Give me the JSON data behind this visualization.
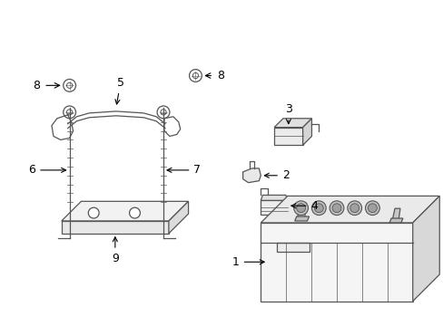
{
  "background_color": "#ffffff",
  "line_color": "#555555",
  "label_color": "#000000",
  "fig_w": 4.89,
  "fig_h": 3.6,
  "dpi": 100,
  "label_fontsize": 9,
  "parts_label_fontsize": 8
}
